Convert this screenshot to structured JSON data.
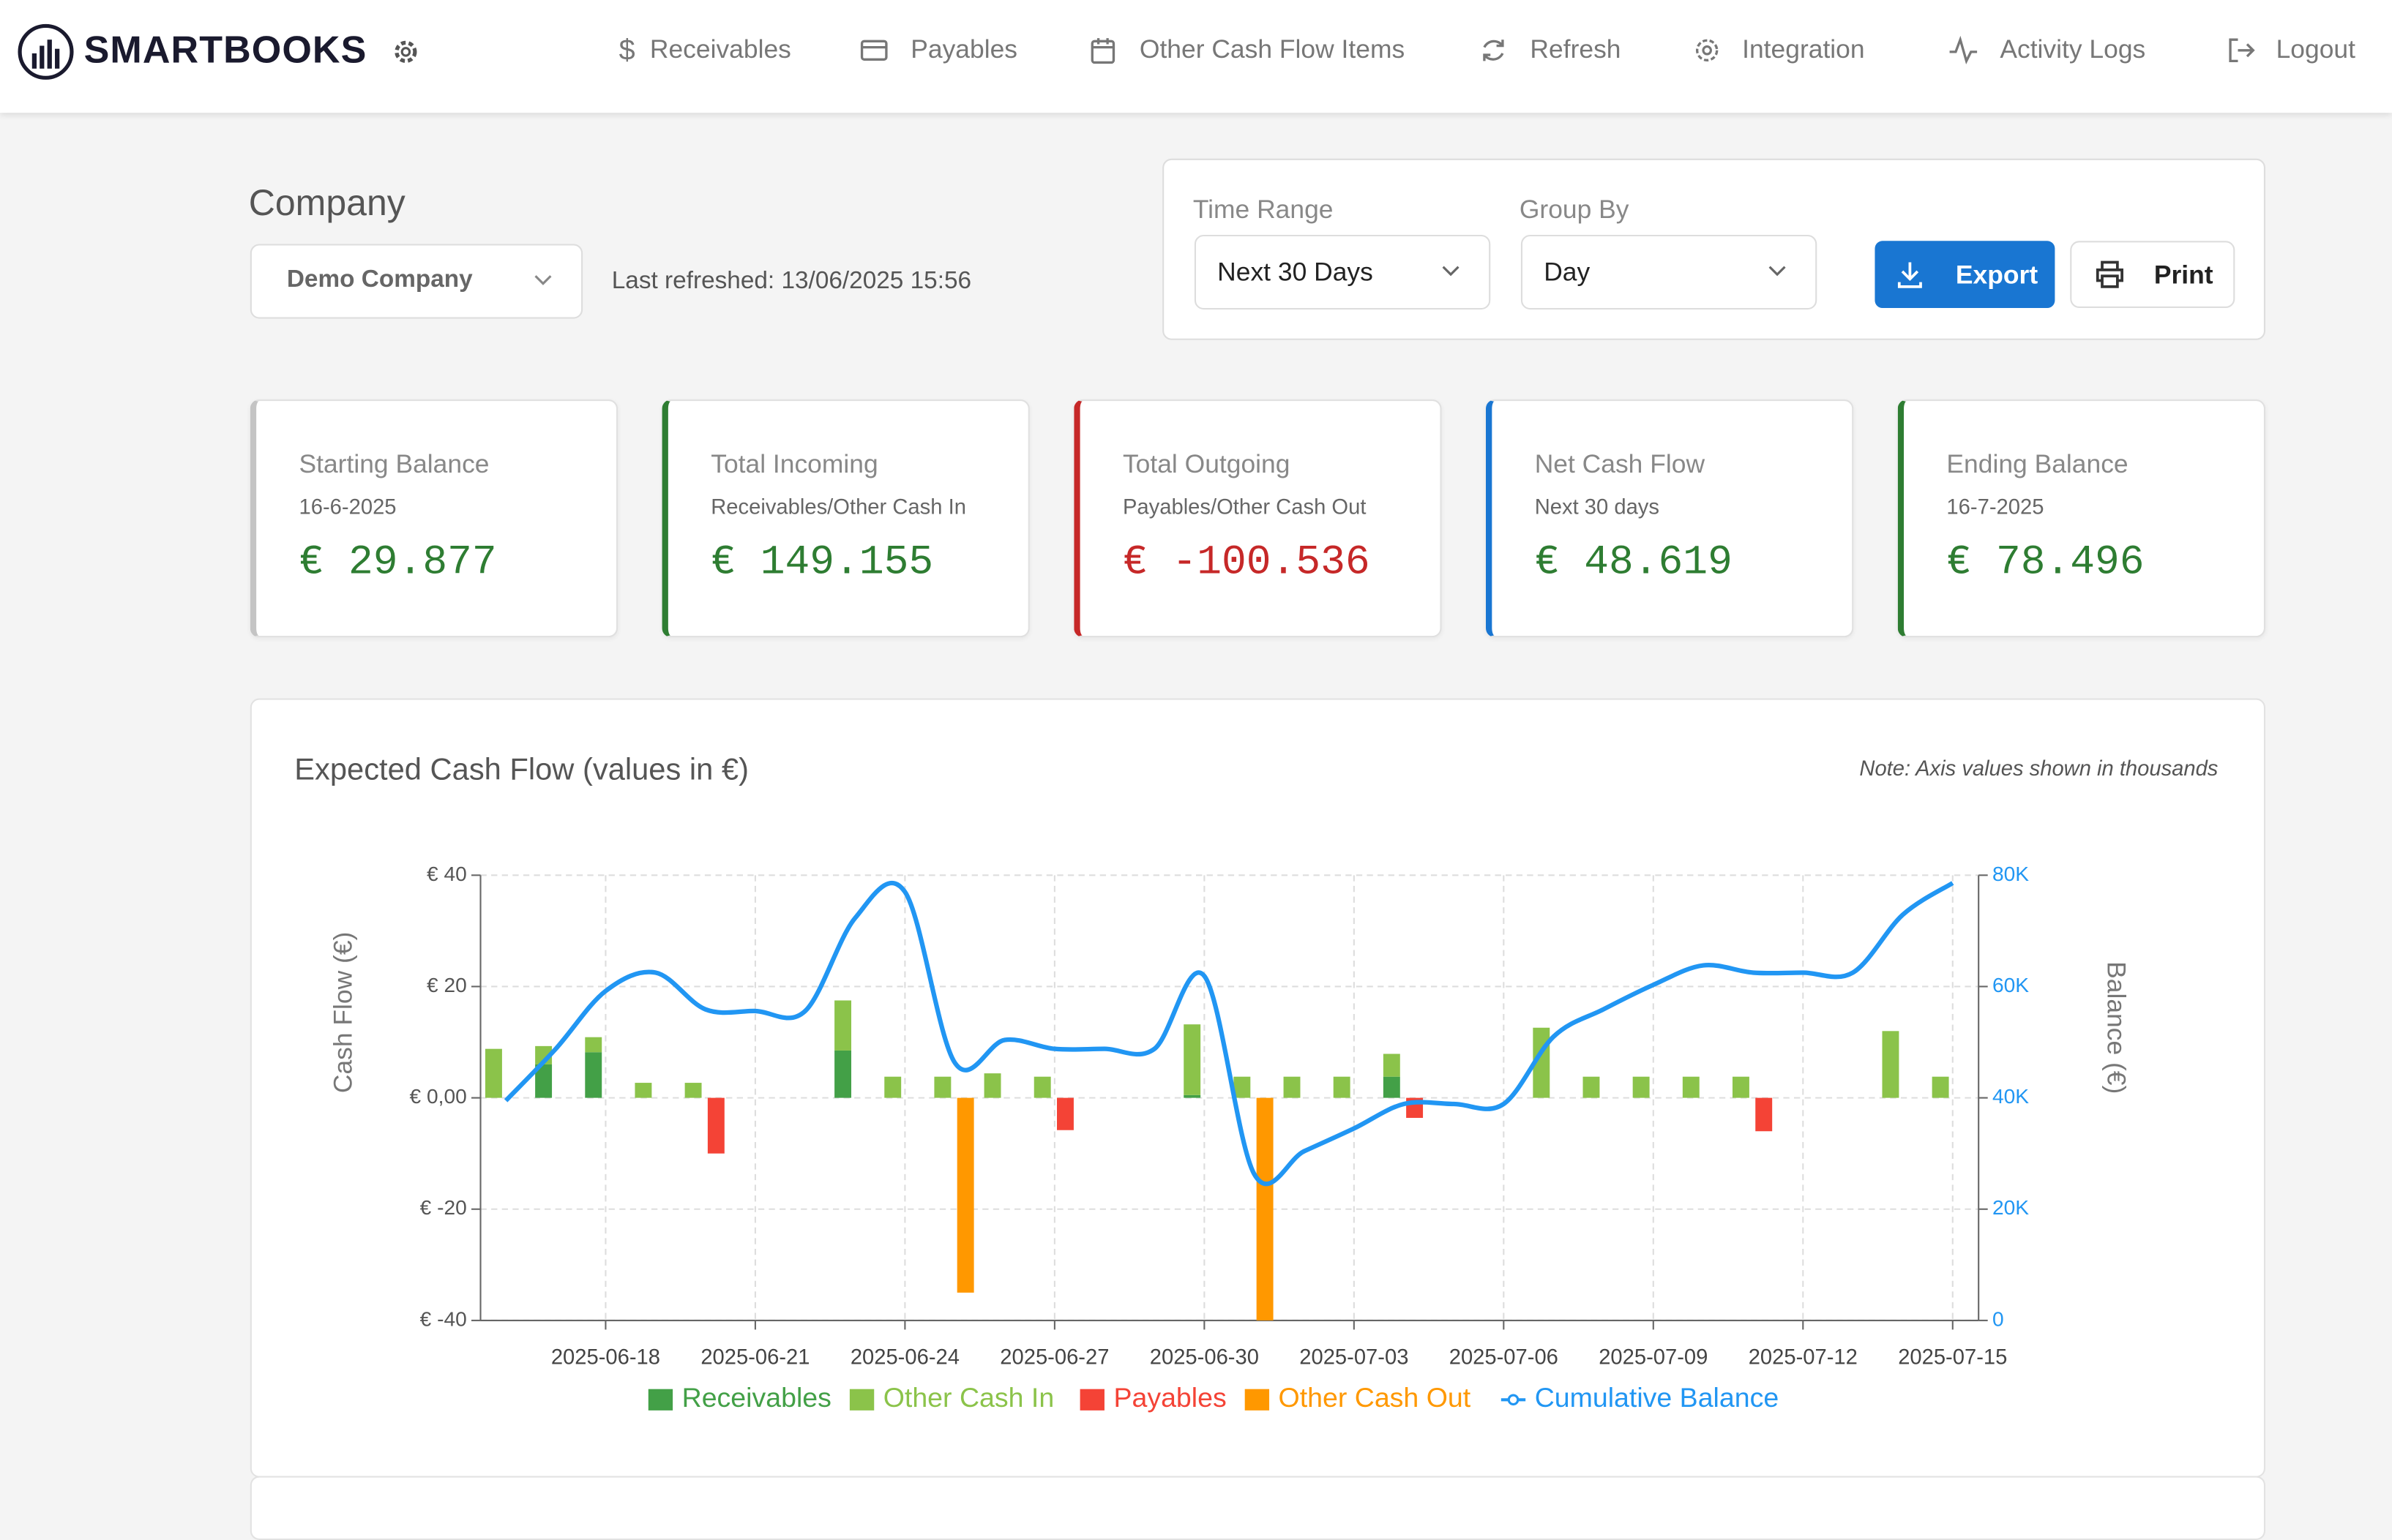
{
  "nav": {
    "brand": "SMARTBOOKS",
    "items": [
      "Receivables",
      "Payables",
      "Other Cash Flow Items",
      "Refresh",
      "Integration",
      "Activity Logs",
      "Logout"
    ]
  },
  "company": {
    "title": "Company",
    "selected": "Demo Company",
    "last_refreshed": "Last refreshed: 13/06/2025 15:56"
  },
  "filters": {
    "time_range": {
      "label": "Time Range",
      "value": "Next 30 Days"
    },
    "group_by": {
      "label": "Group By",
      "value": "Day"
    },
    "buttons": [
      "Export",
      "Print"
    ]
  },
  "cards": [
    {
      "title": "Starting Balance",
      "subtitle": "16-6-2025",
      "value": "€ 29.877",
      "accent": "#c4c4c4",
      "color": "#2e7d32"
    },
    {
      "title": "Total Incoming",
      "subtitle": "Receivables/Other Cash In",
      "value": "€ 149.155",
      "accent": "#2e7d32",
      "color": "#2e7d32"
    },
    {
      "title": "Total Outgoing",
      "subtitle": "Payables/Other Cash Out",
      "value": "€ -100.536",
      "accent": "#c62828",
      "color": "#c62828"
    },
    {
      "title": "Net Cash Flow",
      "subtitle": "Next 30 days",
      "value": "€ 48.619",
      "accent": "#1976d2",
      "color": "#2e7d32"
    },
    {
      "title": "Ending Balance",
      "subtitle": "16-7-2025",
      "value": "€ 78.496",
      "accent": "#2e7d32",
      "color": "#2e7d32"
    }
  ],
  "chart_data": {
    "type": "bar-line",
    "title": "Expected Cash Flow (values in €)",
    "note": "Note: Axis values shown in thousands",
    "y_label": "Cash Flow (€)",
    "y2_label": "Balance (€)",
    "categories": [
      null,
      null,
      "2025-06-18",
      null,
      null,
      "2025-06-21",
      null,
      null,
      "2025-06-24",
      null,
      null,
      "2025-06-27",
      null,
      null,
      "2025-06-30",
      null,
      null,
      "2025-07-03",
      null,
      null,
      "2025-07-06",
      null,
      null,
      "2025-07-09",
      null,
      null,
      "2025-07-12",
      null,
      null,
      "2025-07-15"
    ],
    "ylim": [
      -40,
      40
    ],
    "yticks": [
      {
        "value": 40,
        "label": "€ 40"
      },
      {
        "value": 20,
        "label": "€ 20"
      },
      {
        "value": 0,
        "label": "€ 0,00"
      },
      {
        "value": -20,
        "label": "€ -20"
      },
      {
        "value": -40,
        "label": "€ -40"
      }
    ],
    "y2lim": [
      0,
      80000
    ],
    "y2ticks": [
      {
        "value": 80000,
        "label": "80K"
      },
      {
        "value": 60000,
        "label": "60K"
      },
      {
        "value": 40000,
        "label": "40K"
      },
      {
        "value": 20000,
        "label": "20K"
      },
      0
    ],
    "grid": true,
    "legend": "bottom",
    "series": [
      {
        "name": "Receivables",
        "color": "#43a047",
        "type": "bar",
        "values": [
          0,
          6,
          8.2,
          0,
          0,
          0,
          0,
          8.5,
          0,
          0,
          0,
          0,
          0,
          0,
          0.5,
          0,
          0,
          0,
          3.8,
          0,
          0,
          0,
          0,
          0,
          0,
          0,
          0,
          0,
          0,
          0
        ]
      },
      {
        "name": "Other Cash In",
        "color": "#8bc34a",
        "type": "bar",
        "values": [
          8.8,
          3.3,
          2.7,
          2.7,
          2.7,
          0,
          0,
          9,
          3.8,
          3.8,
          4.4,
          3.8,
          0,
          0,
          12.7,
          3.8,
          3.8,
          3.8,
          4.1,
          0,
          0,
          12.6,
          3.8,
          3.8,
          3.8,
          3.8,
          0,
          0,
          12,
          3.8
        ]
      },
      {
        "name": "Payables",
        "color": "#f44336",
        "type": "bar",
        "values": [
          0,
          0,
          0,
          0,
          -10,
          0,
          0,
          0,
          0,
          0,
          0,
          -5.8,
          0,
          0,
          0,
          0,
          0,
          0,
          -3.6,
          0,
          0,
          0,
          0,
          0,
          0,
          -6,
          0,
          0,
          0,
          0
        ]
      },
      {
        "name": "Other Cash Out",
        "color": "#ff9800",
        "type": "bar",
        "values": [
          0,
          0,
          0,
          0,
          0,
          0,
          0,
          0,
          0,
          -35,
          0,
          0,
          0,
          0,
          0,
          -40,
          0,
          0,
          0,
          0,
          0,
          0,
          0,
          0,
          0,
          0,
          0,
          0,
          0,
          0
        ]
      },
      {
        "name": "Cumulative Balance",
        "color": "#2196f3",
        "type": "line",
        "axis": "y2",
        "values": [
          39500,
          48800,
          59200,
          62500,
          55900,
          55600,
          55600,
          72300,
          77000,
          46300,
          50400,
          48800,
          48800,
          48800,
          61900,
          26300,
          30400,
          34500,
          38900,
          38900,
          38900,
          51000,
          55900,
          60300,
          63800,
          62500,
          62500,
          62500,
          72900,
          78600
        ]
      }
    ]
  }
}
